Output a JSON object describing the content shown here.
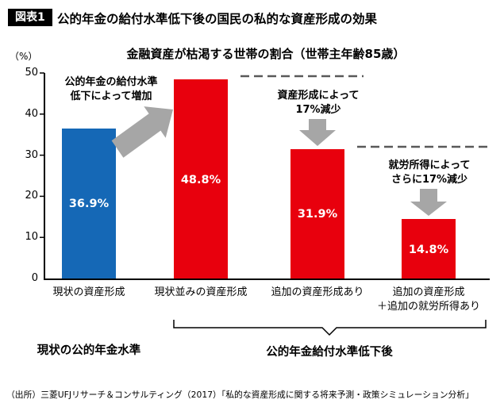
{
  "header": {
    "badge": "図表1",
    "title": "公的年金の給付水準低下後の国民の私的な資産形成の効果"
  },
  "chart_data": {
    "type": "bar",
    "title": "金融資産が枯渇する世帯の割合（世帯主年齢85歳）",
    "ylabel": "（%）",
    "xlabel": "",
    "ylim": [
      0,
      50
    ],
    "yticks": [
      50,
      40,
      30,
      20,
      10,
      0
    ],
    "grid": false,
    "categories": [
      "現状の資産形成",
      "現状並みの資産形成",
      "追加の資産形成あり",
      "追加の資産形成\n＋追加の就労所得あり"
    ],
    "values": [
      36.9,
      48.8,
      31.9,
      14.8
    ],
    "bar_labels": [
      "36.9%",
      "48.8%",
      "31.9%",
      "14.8%"
    ],
    "bar_colors": [
      "#1568b6",
      "#e8000d",
      "#e8000d",
      "#e8000d"
    ],
    "annotations": [
      "公的年金の給付水準\n低下によって増加",
      "資産形成によって\n17%減少",
      "就労所得によって\nさらに17%減少"
    ],
    "group_labels": [
      "現状の公的年金水準",
      "公的年金給付水準低下後"
    ],
    "colors": {
      "arrow_gray": "#a6a6a6",
      "dashed_line": "#595959",
      "axis": "#000000"
    }
  },
  "footer": {
    "source": "（出所）三菱UFJリサーチ＆コンサルティング（2017）「私的な資産形成に関する将来予測・政策シミュレーション分析」"
  }
}
